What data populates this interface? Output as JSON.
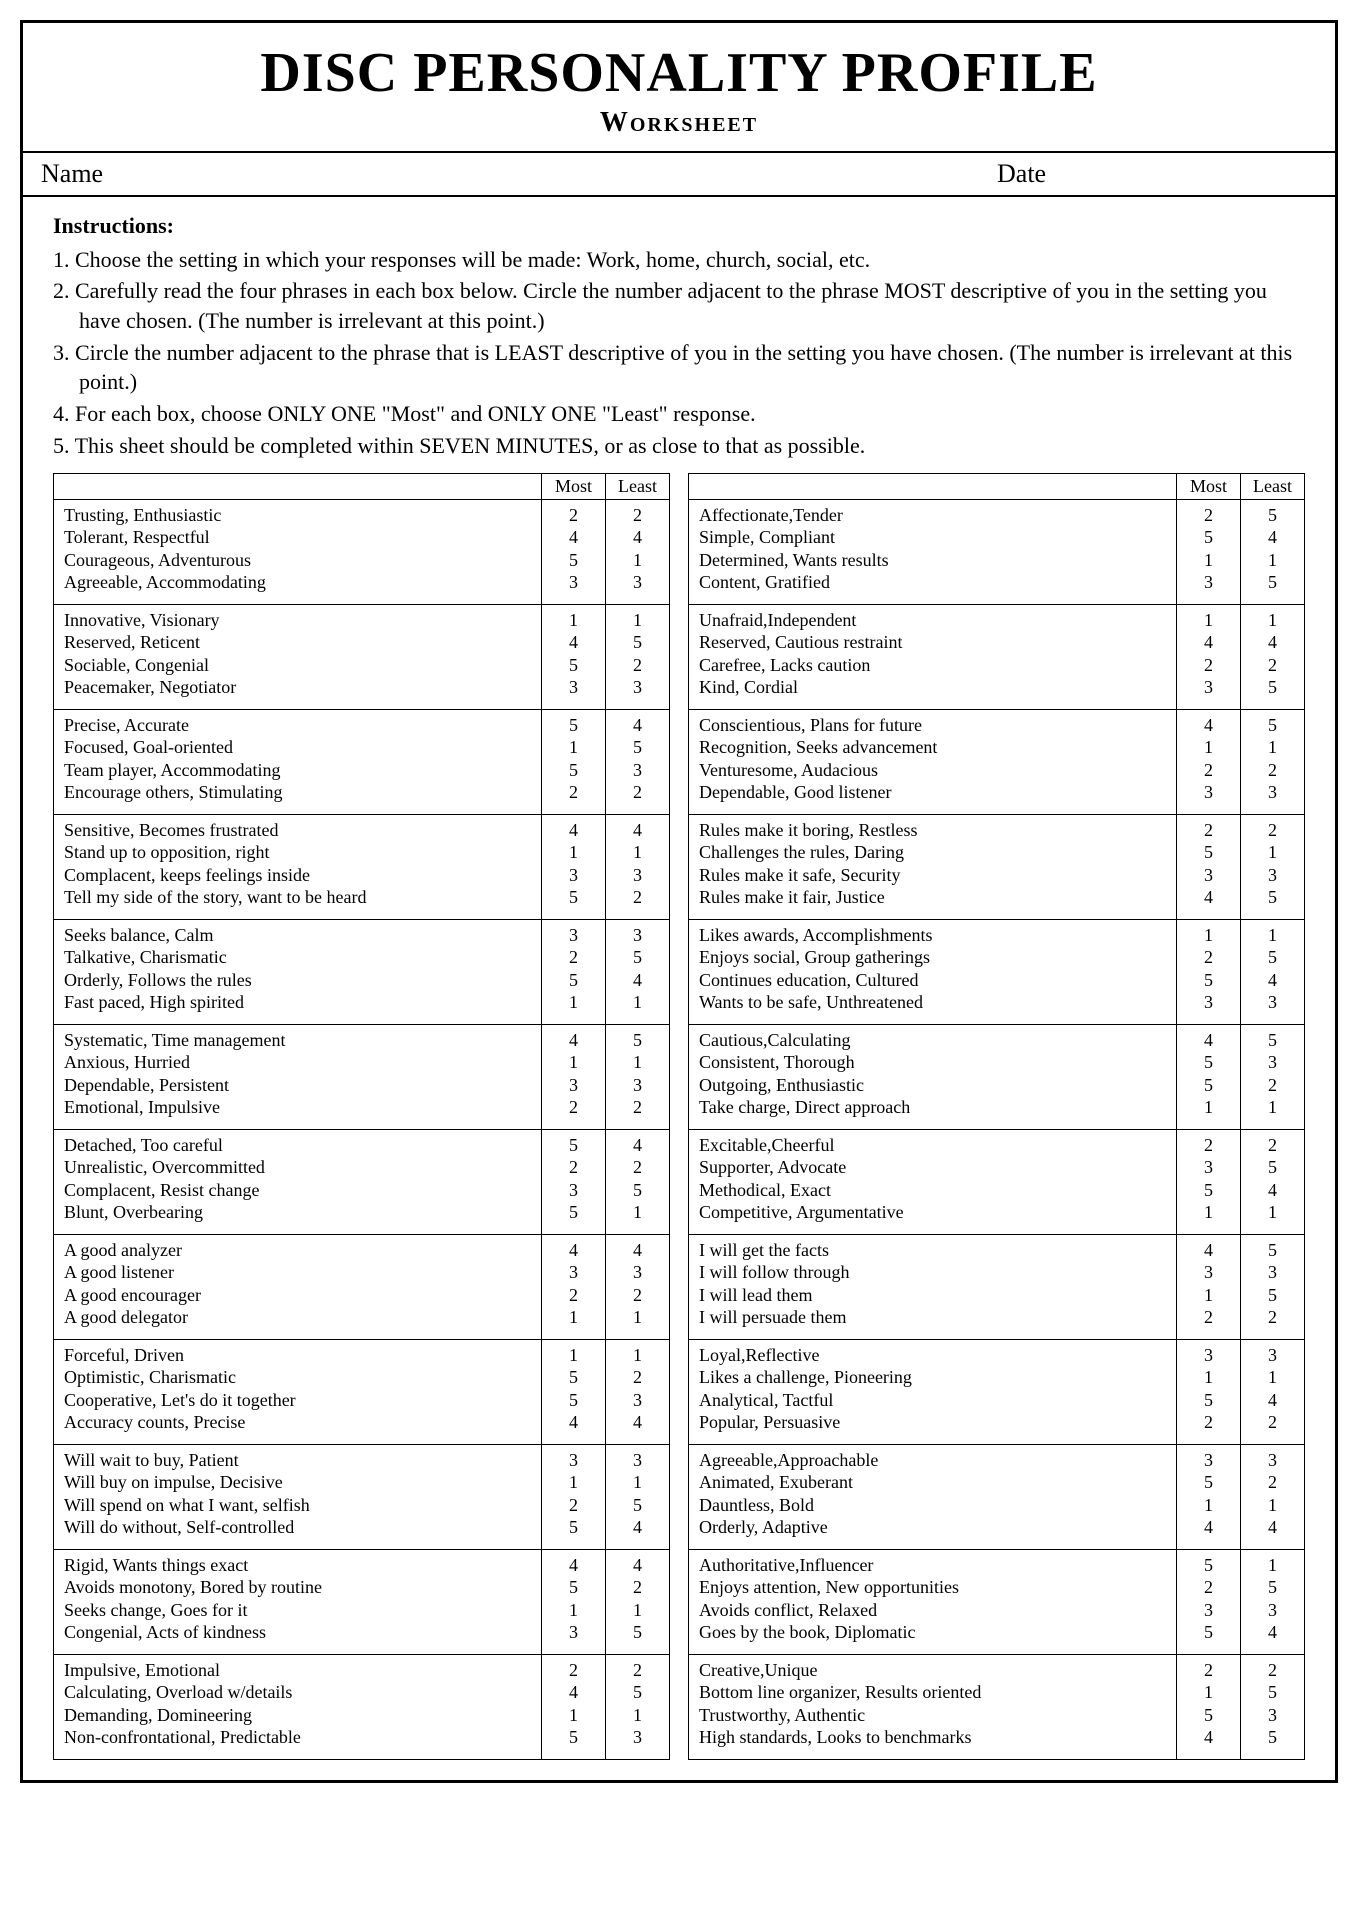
{
  "title": "DISC PERSONALITY PROFILE",
  "subtitle": "Worksheet",
  "nameLabel": "Name",
  "dateLabel": "Date",
  "instructionsTitle": "Instructions:",
  "instructions": [
    "1. Choose the setting in which your responses will be made: Work, home, church, social, etc.",
    "2. Carefully read the four phrases in each box below. Circle the number adjacent to the phrase MOST descriptive of you in the setting you have chosen. (The number is irrelevant at this point.)",
    "3. Circle the number adjacent to the phrase that is LEAST descriptive of you in the setting you have chosen. (The number is irrelevant at this point.)",
    "4. For each box, choose ONLY ONE \"Most\" and ONLY ONE \"Least\" response.",
    "5. This sheet should be completed within SEVEN MINUTES, or as close to that as possible."
  ],
  "headers": {
    "most": "Most",
    "least": "Least"
  },
  "leftBoxes": [
    [
      {
        "p": "Trusting, Enthusiastic",
        "m": "2",
        "l": "2"
      },
      {
        "p": "Tolerant, Respectful",
        "m": "4",
        "l": "4"
      },
      {
        "p": "Courageous, Adventurous",
        "m": "5",
        "l": "1"
      },
      {
        "p": "Agreeable, Accommodating",
        "m": "3",
        "l": "3"
      }
    ],
    [
      {
        "p": "Innovative, Visionary",
        "m": "1",
        "l": "1"
      },
      {
        "p": "Reserved, Reticent",
        "m": "4",
        "l": "5"
      },
      {
        "p": "Sociable, Congenial",
        "m": "5",
        "l": "2"
      },
      {
        "p": "Peacemaker, Negotiator",
        "m": "3",
        "l": "3"
      }
    ],
    [
      {
        "p": "Precise, Accurate",
        "m": "5",
        "l": "4"
      },
      {
        "p": "Focused, Goal-oriented",
        "m": "1",
        "l": "5"
      },
      {
        "p": "Team player, Accommodating",
        "m": "5",
        "l": "3"
      },
      {
        "p": "Encourage others, Stimulating",
        "m": "2",
        "l": "2"
      }
    ],
    [
      {
        "p": "Sensitive, Becomes frustrated",
        "m": "4",
        "l": "4"
      },
      {
        "p": "Stand up to opposition, right",
        "m": "1",
        "l": "1"
      },
      {
        "p": "Complacent, keeps feelings inside",
        "m": "3",
        "l": "3"
      },
      {
        "p": "Tell my side of the story, want to be heard",
        "m": "5",
        "l": "2"
      }
    ],
    [
      {
        "p": "Seeks balance, Calm",
        "m": "3",
        "l": "3"
      },
      {
        "p": "Talkative, Charismatic",
        "m": "2",
        "l": "5"
      },
      {
        "p": "Orderly, Follows the rules",
        "m": "5",
        "l": "4"
      },
      {
        "p": "Fast paced, High spirited",
        "m": "1",
        "l": "1"
      }
    ],
    [
      {
        "p": "Systematic, Time management",
        "m": "4",
        "l": "5"
      },
      {
        "p": "Anxious, Hurried",
        "m": "1",
        "l": "1"
      },
      {
        "p": "Dependable, Persistent",
        "m": "3",
        "l": "3"
      },
      {
        "p": "Emotional, Impulsive",
        "m": "2",
        "l": "2"
      }
    ],
    [
      {
        "p": "Detached, Too careful",
        "m": "5",
        "l": "4"
      },
      {
        "p": "Unrealistic, Overcommitted",
        "m": "2",
        "l": "2"
      },
      {
        "p": "Complacent, Resist change",
        "m": "3",
        "l": "5"
      },
      {
        "p": "Blunt, Overbearing",
        "m": "5",
        "l": "1"
      }
    ],
    [
      {
        "p": "A good analyzer",
        "m": "4",
        "l": "4"
      },
      {
        "p": "A good listener",
        "m": "3",
        "l": "3"
      },
      {
        "p": "A good encourager",
        "m": "2",
        "l": "2"
      },
      {
        "p": "A good delegator",
        "m": "1",
        "l": "1"
      }
    ],
    [
      {
        "p": "Forceful, Driven",
        "m": "1",
        "l": "1"
      },
      {
        "p": "Optimistic, Charismatic",
        "m": "5",
        "l": "2"
      },
      {
        "p": "Cooperative, Let's do it together",
        "m": "5",
        "l": "3"
      },
      {
        "p": "Accuracy counts, Precise",
        "m": "4",
        "l": "4"
      }
    ],
    [
      {
        "p": "Will wait to buy, Patient",
        "m": "3",
        "l": "3"
      },
      {
        "p": "Will buy on impulse, Decisive",
        "m": "1",
        "l": "1"
      },
      {
        "p": "Will spend on what I want, selfish",
        "m": "2",
        "l": "5"
      },
      {
        "p": "Will do without, Self-controlled",
        "m": "5",
        "l": "4"
      }
    ],
    [
      {
        "p": "Rigid, Wants things exact",
        "m": "4",
        "l": "4"
      },
      {
        "p": "Avoids monotony, Bored by routine",
        "m": "5",
        "l": "2"
      },
      {
        "p": "Seeks change, Goes for it",
        "m": "1",
        "l": "1"
      },
      {
        "p": "Congenial, Acts of kindness",
        "m": "3",
        "l": "5"
      }
    ],
    [
      {
        "p": "Impulsive, Emotional",
        "m": "2",
        "l": "2"
      },
      {
        "p": "Calculating, Overload w/details",
        "m": "4",
        "l": "5"
      },
      {
        "p": "Demanding, Domineering",
        "m": "1",
        "l": "1"
      },
      {
        "p": "Non-confrontational, Predictable",
        "m": "5",
        "l": "3"
      }
    ]
  ],
  "rightBoxes": [
    [
      {
        "p": "Affectionate,Tender",
        "m": "2",
        "l": "5"
      },
      {
        "p": "Simple, Compliant",
        "m": "5",
        "l": "4"
      },
      {
        "p": "Determined, Wants results",
        "m": "1",
        "l": "1"
      },
      {
        "p": "Content, Gratified",
        "m": "3",
        "l": "5"
      }
    ],
    [
      {
        "p": "Unafraid,Independent",
        "m": "1",
        "l": "1"
      },
      {
        "p": "Reserved, Cautious restraint",
        "m": "4",
        "l": "4"
      },
      {
        "p": "Carefree, Lacks caution",
        "m": "2",
        "l": "2"
      },
      {
        "p": "Kind, Cordial",
        "m": "3",
        "l": "5"
      }
    ],
    [
      {
        "p": "Conscientious, Plans for future",
        "m": "4",
        "l": "5"
      },
      {
        "p": "Recognition, Seeks advancement",
        "m": "1",
        "l": "1"
      },
      {
        "p": "Venturesome, Audacious",
        "m": "2",
        "l": "2"
      },
      {
        "p": "Dependable, Good listener",
        "m": "3",
        "l": "3"
      }
    ],
    [
      {
        "p": "Rules make it boring, Restless",
        "m": "2",
        "l": "2"
      },
      {
        "p": "Challenges the rules, Daring",
        "m": "5",
        "l": "1"
      },
      {
        "p": "Rules make it safe, Security",
        "m": "3",
        "l": "3"
      },
      {
        "p": "Rules make it fair, Justice",
        "m": "4",
        "l": "5"
      }
    ],
    [
      {
        "p": "Likes awards, Accomplishments",
        "m": "1",
        "l": "1"
      },
      {
        "p": "Enjoys social, Group gatherings",
        "m": "2",
        "l": "5"
      },
      {
        "p": "Continues education, Cultured",
        "m": "5",
        "l": "4"
      },
      {
        "p": "Wants to be safe, Unthreatened",
        "m": "3",
        "l": "3"
      }
    ],
    [
      {
        "p": "Cautious,Calculating",
        "m": "4",
        "l": "5"
      },
      {
        "p": "Consistent, Thorough",
        "m": "5",
        "l": "3"
      },
      {
        "p": "Outgoing, Enthusiastic",
        "m": "5",
        "l": "2"
      },
      {
        "p": "Take charge, Direct approach",
        "m": "1",
        "l": "1"
      }
    ],
    [
      {
        "p": "Excitable,Cheerful",
        "m": "2",
        "l": "2"
      },
      {
        "p": "Supporter, Advocate",
        "m": "3",
        "l": "5"
      },
      {
        "p": "Methodical, Exact",
        "m": "5",
        "l": "4"
      },
      {
        "p": "Competitive, Argumentative",
        "m": "1",
        "l": "1"
      }
    ],
    [
      {
        "p": "I will get the facts",
        "m": "4",
        "l": "5"
      },
      {
        "p": "I will follow through",
        "m": "3",
        "l": "3"
      },
      {
        "p": "I will lead them",
        "m": "1",
        "l": "5"
      },
      {
        "p": "I will persuade them",
        "m": "2",
        "l": "2"
      }
    ],
    [
      {
        "p": "Loyal,Reflective",
        "m": "3",
        "l": "3"
      },
      {
        "p": "Likes a challenge, Pioneering",
        "m": "1",
        "l": "1"
      },
      {
        "p": "Analytical, Tactful",
        "m": "5",
        "l": "4"
      },
      {
        "p": "Popular, Persuasive",
        "m": "2",
        "l": "2"
      }
    ],
    [
      {
        "p": "Agreeable,Approachable",
        "m": "3",
        "l": "3"
      },
      {
        "p": "Animated, Exuberant",
        "m": "5",
        "l": "2"
      },
      {
        "p": "Dauntless, Bold",
        "m": "1",
        "l": "1"
      },
      {
        "p": "Orderly, Adaptive",
        "m": "4",
        "l": "4"
      }
    ],
    [
      {
        "p": "Authoritative,Influencer",
        "m": "5",
        "l": "1"
      },
      {
        "p": "Enjoys attention, New opportunities",
        "m": "2",
        "l": "5"
      },
      {
        "p": "Avoids conflict, Relaxed",
        "m": "3",
        "l": "3"
      },
      {
        "p": "Goes by the book, Diplomatic",
        "m": "5",
        "l": "4"
      }
    ],
    [
      {
        "p": "Creative,Unique",
        "m": "2",
        "l": "2"
      },
      {
        "p": "Bottom line organizer, Results oriented",
        "m": "1",
        "l": "5"
      },
      {
        "p": "Trustworthy, Authentic",
        "m": "5",
        "l": "3"
      },
      {
        "p": "High standards, Looks to benchmarks",
        "m": "4",
        "l": "5"
      }
    ]
  ]
}
